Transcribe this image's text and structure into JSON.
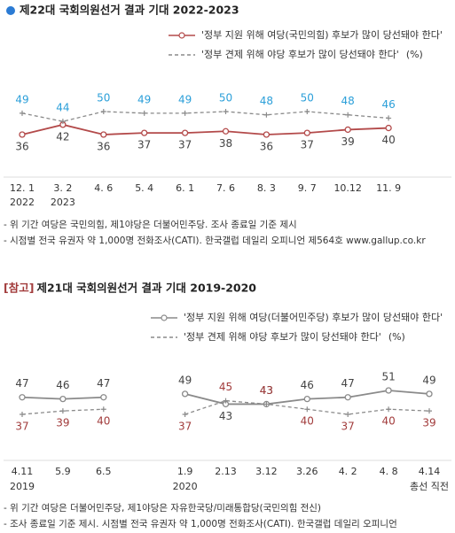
{
  "chart_data": [
    {
      "type": "line",
      "title": "제22대 국회의원선거 결과 기대 2022-2023",
      "unit": "(%)",
      "categories": [
        "12. 1",
        "3. 2",
        "4. 6",
        "5. 4",
        "6. 1",
        "7. 6",
        "8. 3",
        "9. 7",
        "10.12",
        "11. 9"
      ],
      "year_labels": [
        "2022",
        "2023",
        null,
        null,
        null,
        null,
        null,
        null,
        null,
        null
      ],
      "series": [
        {
          "name": "'정부 지원 위해 여당(국민의힘) 후보가 많이 당선돼야 한다'",
          "color": "#b34a4a",
          "label_color": "#444444",
          "dashed": false,
          "values": [
            36,
            42,
            36,
            37,
            37,
            38,
            36,
            37,
            39,
            40
          ]
        },
        {
          "name": "'정부 견제 위해 야당 후보가 많이 당선돼야 한다'",
          "color": "#8a8a8a",
          "label_color": "#2b9fd9",
          "dashed": true,
          "values": [
            49,
            44,
            50,
            49,
            49,
            50,
            48,
            50,
            48,
            46
          ]
        }
      ],
      "notes": [
        "- 위 기간 여당은 국민의힘, 제1야당은 더불어민주당. 조사 종료일 기준 제시",
        "- 시점별 전국 유권자 약 1,000명 전화조사(CATI). 한국갤럽 데일리 오피니언 제564호 www.gallup.co.kr"
      ]
    },
    {
      "type": "line",
      "title_prefix": "[참고]",
      "title": "제21대 국회의원선거 결과 기대 2019-2020",
      "unit": "(%)",
      "categories": [
        "4.11",
        "5.9",
        "6.5",
        null,
        "1.9",
        "2.13",
        "3.12",
        "3.26",
        "4. 2",
        "4. 8",
        "4.14"
      ],
      "year_labels": [
        "2019",
        null,
        null,
        null,
        "2020",
        null,
        null,
        null,
        null,
        null,
        "총선 직전"
      ],
      "series": [
        {
          "name": "'정부 지원 위해 여당(더불어민주당) 후보가 많이 당선돼야 한다'",
          "color": "#8a8a8a",
          "label_color": "#444444",
          "dashed": false,
          "values": [
            47,
            46,
            47,
            null,
            49,
            43,
            43,
            46,
            47,
            51,
            49
          ]
        },
        {
          "name": "'정부 견제 위해 야당 후보가 많이 당선돼야 한다'",
          "color": "#8a8a8a",
          "label_color": "#a23c3c",
          "dashed": true,
          "values": [
            37,
            39,
            40,
            null,
            37,
            45,
            43,
            40,
            37,
            40,
            39
          ]
        }
      ],
      "notes": [
        "- 위 기간 여당은 더불어민주당, 제1야당은 자유한국당/미래통합당(국민의힘 전신)",
        "- 조사 종료일 기준 제시. 시점별 전국 유권자 약 1,000명 전화조사(CATI). 한국갤럽 데일리 오피니언"
      ]
    }
  ]
}
